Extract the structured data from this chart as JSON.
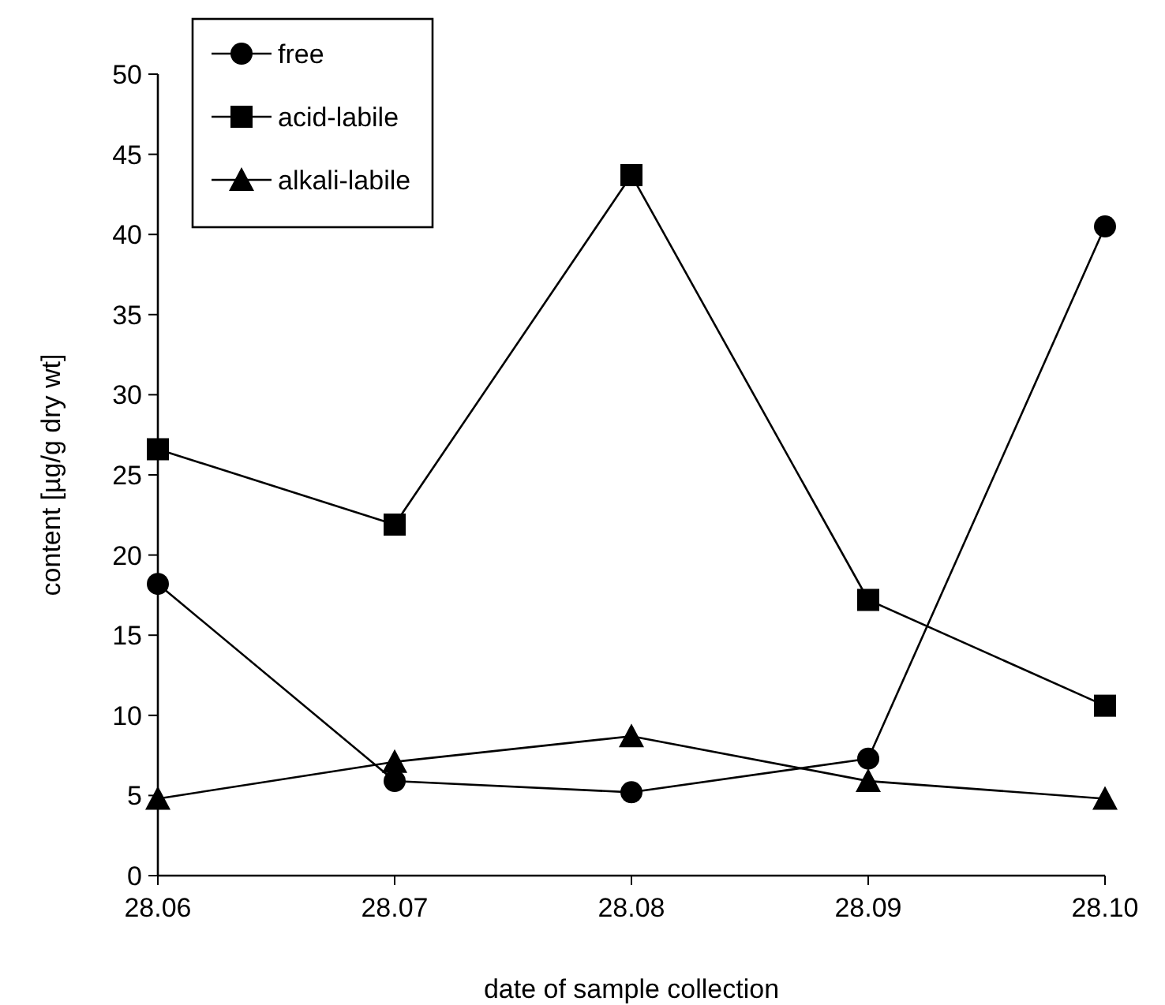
{
  "chart_data": {
    "type": "line",
    "xlabel": "date of sample collection",
    "ylabel": "content [µg/g dry wt]",
    "categories": [
      "28.06",
      "28.07",
      "28.08",
      "28.09",
      "28.10"
    ],
    "ylim": [
      0,
      50
    ],
    "yticks": [
      0,
      5,
      10,
      15,
      20,
      25,
      30,
      35,
      40,
      45,
      50
    ],
    "legend": "top left",
    "grid": false,
    "line_style": "solid",
    "series": [
      {
        "name": "free",
        "color": "#000000",
        "marker": "circle",
        "values": [
          18.2,
          5.9,
          5.2,
          7.3,
          40.5
        ]
      },
      {
        "name": "acid-labile",
        "color": "#000000",
        "marker": "square",
        "values": [
          26.6,
          21.9,
          43.7,
          17.2,
          10.6
        ]
      },
      {
        "name": "alkali-labile",
        "color": "#000000",
        "marker": "triangle",
        "values": [
          4.8,
          7.1,
          8.7,
          5.9,
          4.8
        ]
      }
    ]
  }
}
